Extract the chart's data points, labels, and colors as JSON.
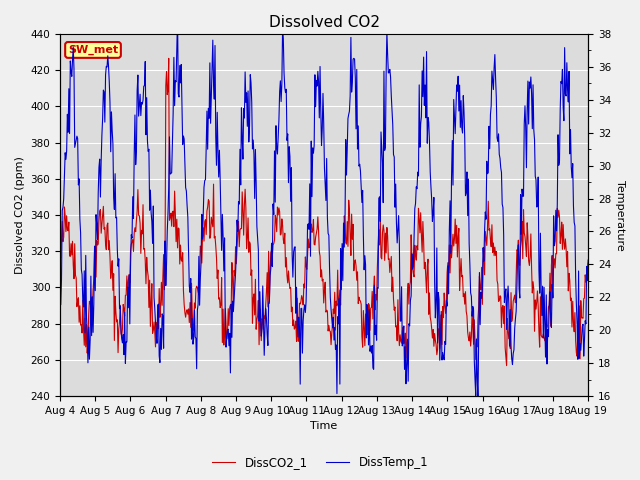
{
  "title": "Dissolved CO2",
  "xlabel": "Time",
  "ylabel_left": "Dissolved CO2 (ppm)",
  "ylabel_right": "Temperature",
  "ylim_left": [
    240,
    440
  ],
  "ylim_right": [
    16,
    38
  ],
  "xlim": [
    0,
    15
  ],
  "xtick_labels": [
    "Aug 4",
    "Aug 5",
    "Aug 6",
    "Aug 7",
    "Aug 8",
    "Aug 9",
    "Aug 10",
    "Aug 11",
    "Aug 12",
    "Aug 13",
    "Aug 14",
    "Aug 15",
    "Aug 16",
    "Aug 17",
    "Aug 18",
    "Aug 19"
  ],
  "legend_labels": [
    "DissCO2_1",
    "DissTemp_1"
  ],
  "line_colors": [
    "#cc0000",
    "#0000cc"
  ],
  "fig_bg": "#f0f0f0",
  "plot_bg": "#dcdcdc",
  "sw_met_label": "SW_met",
  "sw_met_bg": "#ffff99",
  "sw_met_border": "#cc0000",
  "title_fontsize": 11,
  "axis_fontsize": 8,
  "tick_fontsize": 7.5
}
